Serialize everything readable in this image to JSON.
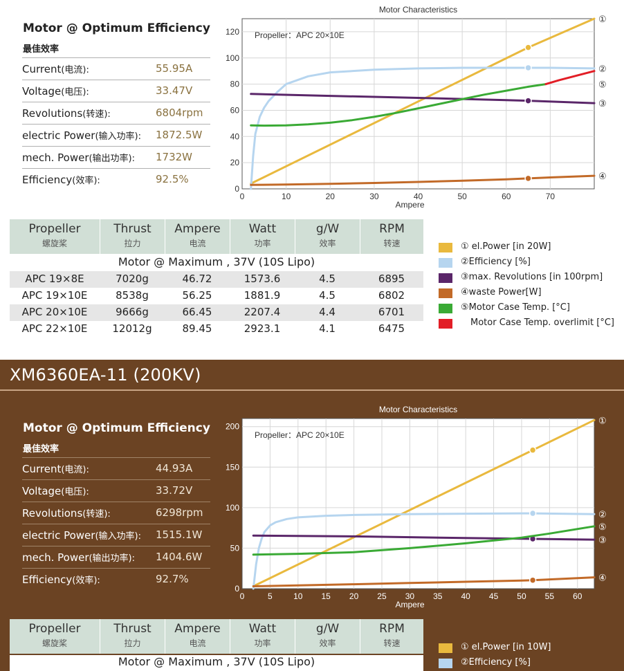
{
  "top": {
    "spec": {
      "title": "Motor @ Optimum Efficiency",
      "subtitle": "最佳效率",
      "rows": [
        {
          "label": "Current",
          "cn": "(电流):",
          "value": "55.95A"
        },
        {
          "label": "Voltage",
          "cn": "(电压):",
          "value": "33.47V"
        },
        {
          "label": "Revolutions",
          "cn": "(转速):",
          "value": "6804rpm"
        },
        {
          "label": "electric Power",
          "cn": "(输入功率):",
          "value": "1872.5W"
        },
        {
          "label": "mech. Power",
          "cn": "(输出功率):",
          "value": "1732W"
        },
        {
          "label": "Efficiency",
          "cn": "(效率):",
          "value": "92.5%"
        }
      ]
    },
    "table": {
      "headers": [
        {
          "en": "Propeller",
          "cn": "螺旋桨"
        },
        {
          "en": "Thrust",
          "cn": "拉力"
        },
        {
          "en": "Ampere",
          "cn": "电流"
        },
        {
          "en": "Watt",
          "cn": "功率"
        },
        {
          "en": "g/W",
          "cn": "效率"
        },
        {
          "en": "RPM",
          "cn": "转速"
        }
      ],
      "max_label": "Motor @ Maximum , 37V (10S Lipo)",
      "rows": [
        [
          "APC 19×8E",
          "7020g",
          "46.72",
          "1573.6",
          "4.5",
          "6895"
        ],
        [
          "APC 19×10E",
          "8538g",
          "56.25",
          "1881.9",
          "4.5",
          "6802"
        ],
        [
          "APC 20×10E",
          "9666g",
          "66.45",
          "2207.4",
          "4.4",
          "6701"
        ],
        [
          "APC 22×10E",
          "12012g",
          "89.45",
          "2923.1",
          "4.1",
          "6475"
        ]
      ]
    },
    "legend": [
      {
        "text": "① el.Power [in 20W]",
        "color": "#e9b93e"
      },
      {
        "text": "②Efficiency [%]",
        "color": "#b6d5ef"
      },
      {
        "text": "③max. Revolutions [in 100rpm]",
        "color": "#5a2669"
      },
      {
        "text": "④waste Power[W]",
        "color": "#c26a28"
      },
      {
        "text": "⑤Motor Case Temp. [°C]",
        "color": "#3aaa35"
      },
      {
        "text": "Motor Case Temp. overlimit [°C]",
        "color": "#e21e26"
      }
    ]
  },
  "bottom": {
    "title": "XM6360EA-11 (200KV)",
    "spec": {
      "title": "Motor @ Optimum Efficiency",
      "subtitle": "最佳效率",
      "rows": [
        {
          "label": "Current",
          "cn": "(电流):",
          "value": "44.93A"
        },
        {
          "label": "Voltage",
          "cn": "(电压):",
          "value": "33.72V"
        },
        {
          "label": "Revolutions",
          "cn": "(转速):",
          "value": "6298rpm"
        },
        {
          "label": "electric Power",
          "cn": "(输入功率):",
          "value": "1515.1W"
        },
        {
          "label": "mech. Power",
          "cn": "(输出功率):",
          "value": "1404.6W"
        },
        {
          "label": "Efficiency",
          "cn": "(效率):",
          "value": "92.7%"
        }
      ]
    },
    "table": {
      "headers": [
        {
          "en": "Propeller",
          "cn": "螺旋桨"
        },
        {
          "en": "Thrust",
          "cn": "拉力"
        },
        {
          "en": "Ampere",
          "cn": "电流"
        },
        {
          "en": "Watt",
          "cn": "功率"
        },
        {
          "en": "g/W",
          "cn": "效率"
        },
        {
          "en": "RPM",
          "cn": "转速"
        }
      ],
      "max_label": "Motor @ Maximum , 37V (10S Lipo)"
    },
    "legend": [
      {
        "text": "① el.Power [in 10W]",
        "color": "#e9b93e"
      },
      {
        "text": "②Efficiency [%]",
        "color": "#b6d5ef"
      }
    ]
  },
  "chart_data": [
    {
      "type": "line",
      "title": "Motor Characteristics",
      "annotation": "Propeller：APC 20×10E",
      "xlabel": "Ampere",
      "ylabel": "",
      "xlim": [
        0,
        80
      ],
      "ylim": [
        0,
        130
      ],
      "xticks": [
        0,
        10,
        20,
        30,
        40,
        50,
        60,
        70
      ],
      "yticks": [
        0,
        20,
        40,
        60,
        80,
        100,
        120
      ],
      "marker_x": 65,
      "series": [
        {
          "id": "el_power",
          "name": "① el.Power [in 20W]",
          "label": "①",
          "color": "#e9b93e",
          "x": [
            2,
            65,
            80
          ],
          "y": [
            4,
            108,
            130
          ],
          "marker": 108
        },
        {
          "id": "efficiency",
          "name": "②Efficiency [%]",
          "label": "②",
          "color": "#b6d5ef",
          "x": [
            2,
            2.5,
            3,
            4,
            5,
            6,
            8,
            10,
            15,
            20,
            30,
            40,
            50,
            60,
            65,
            70,
            80
          ],
          "y": [
            0,
            25,
            42,
            55,
            62,
            67,
            74,
            80,
            86,
            89,
            91,
            92,
            92.5,
            92.5,
            92.5,
            92.5,
            92
          ],
          "marker": 92.5
        },
        {
          "id": "revolutions",
          "name": "③max. Revolutions [in 100rpm]",
          "label": "③",
          "color": "#5a2669",
          "x": [
            2,
            20,
            40,
            60,
            65,
            80
          ],
          "y": [
            72.5,
            71,
            69.5,
            67.8,
            67.3,
            65.5
          ],
          "marker": 67.3
        },
        {
          "id": "waste",
          "name": "④waste Power[W]",
          "label": "④",
          "color": "#c26a28",
          "x": [
            2,
            10,
            20,
            30,
            40,
            50,
            60,
            65,
            70,
            80
          ],
          "y": [
            3,
            3.3,
            3.8,
            4.5,
            5.3,
            6.2,
            7.3,
            8,
            8.7,
            10
          ],
          "marker": 8
        },
        {
          "id": "case_temp",
          "name": "⑤Motor Case Temp. [°C]",
          "label": "⑤",
          "color": "#3aaa35",
          "x": [
            2,
            5,
            10,
            15,
            20,
            25,
            30,
            35,
            40,
            45,
            50,
            55,
            60,
            65,
            69
          ],
          "y": [
            48.5,
            48.3,
            48.5,
            49.3,
            50.5,
            52.5,
            55,
            58,
            61.5,
            65,
            68.5,
            72,
            75,
            78,
            80
          ]
        },
        {
          "id": "case_over",
          "name": "Motor Case Temp. overlimit [°C]",
          "label": "",
          "color": "#e21e26",
          "x": [
            69,
            72,
            76,
            80
          ],
          "y": [
            80,
            83,
            86.5,
            90
          ]
        }
      ]
    },
    {
      "type": "line",
      "title": "Motor Characteristics",
      "annotation": "Propeller：APC 20×10E",
      "xlabel": "Ampere",
      "ylabel": "",
      "xlim": [
        0,
        63
      ],
      "ylim": [
        0,
        210
      ],
      "xticks": [
        0,
        5,
        10,
        15,
        20,
        25,
        30,
        35,
        40,
        45,
        50,
        55,
        60
      ],
      "yticks": [
        0,
        50,
        100,
        150,
        200
      ],
      "marker_x": 52,
      "series": [
        {
          "id": "el_power",
          "name": "① el.Power [in 10W]",
          "label": "①",
          "color": "#e9b93e",
          "x": [
            2,
            52,
            63
          ],
          "y": [
            3,
            171,
            208
          ],
          "marker": 171
        },
        {
          "id": "efficiency",
          "name": "②Efficiency [%]",
          "label": "②",
          "color": "#b6d5ef",
          "x": [
            2,
            2.5,
            3,
            3.5,
            4,
            5,
            6,
            8,
            10,
            15,
            20,
            30,
            40,
            50,
            52,
            63
          ],
          "y": [
            0,
            30,
            50,
            62,
            70,
            78,
            82,
            86,
            88,
            90,
            91,
            92,
            92.5,
            93,
            93,
            92
          ],
          "marker": 93
        },
        {
          "id": "revolutions",
          "name": "③max. Revolutions [in 100rpm]",
          "label": "③",
          "color": "#5a2669",
          "x": [
            2,
            20,
            40,
            52,
            63
          ],
          "y": [
            65.5,
            64.5,
            62.5,
            61.5,
            60.5
          ],
          "marker": 61.5
        },
        {
          "id": "case_temp",
          "name": "⑤Motor Case Temp. [°C]",
          "label": "⑤",
          "color": "#3aaa35",
          "x": [
            2,
            10,
            20,
            30,
            40,
            50,
            55,
            63
          ],
          "y": [
            42,
            43,
            45,
            50,
            56,
            63,
            68,
            77
          ]
        },
        {
          "id": "waste",
          "name": "④waste Power[W]",
          "label": "④",
          "color": "#c26a28",
          "x": [
            2,
            10,
            20,
            30,
            40,
            50,
            52,
            63
          ],
          "y": [
            3,
            4,
            5.5,
            7,
            8.5,
            10,
            10.5,
            14
          ],
          "marker": 10.5
        }
      ]
    }
  ]
}
